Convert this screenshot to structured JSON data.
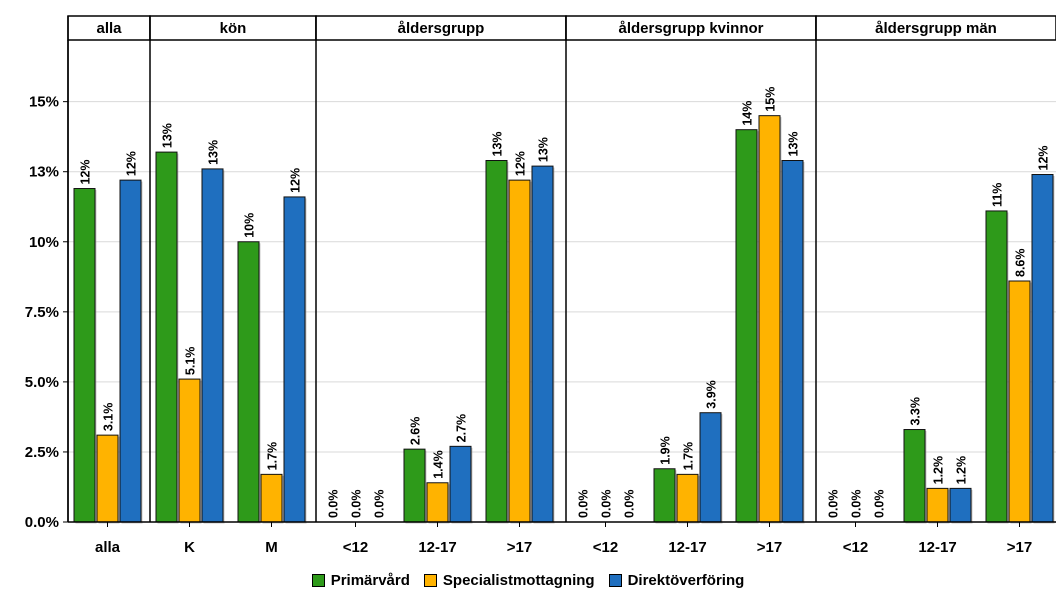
{
  "chart_data": {
    "type": "bar",
    "yticks": [
      "0.0%",
      "2.5%",
      "5.0%",
      "7.5%",
      "10%",
      "13%",
      "15%"
    ],
    "ytick_values": [
      0,
      2.5,
      5.0,
      7.5,
      10,
      12.5,
      15
    ],
    "ylim": [
      0,
      17.2
    ],
    "grid": true,
    "legend_position": "bottom",
    "series": [
      {
        "name": "Primärvård",
        "color": "#2e9a1a"
      },
      {
        "name": "Specialistmottagning",
        "color": "#ffb300"
      },
      {
        "name": "Direktöverföring",
        "color": "#1f6fbf"
      }
    ],
    "panels": [
      {
        "title": "alla",
        "groups": [
          {
            "label": "alla",
            "values": [
              11.9,
              3.1,
              12.2
            ],
            "labels": [
              "12%",
              "3.1%",
              "12%"
            ]
          }
        ]
      },
      {
        "title": "kön",
        "groups": [
          {
            "label": "K",
            "values": [
              13.2,
              5.1,
              12.6
            ],
            "labels": [
              "13%",
              "5.1%",
              "13%"
            ]
          },
          {
            "label": "M",
            "values": [
              10.0,
              1.7,
              11.6
            ],
            "labels": [
              "10%",
              "1.7%",
              "12%"
            ]
          }
        ]
      },
      {
        "title": "åldersgrupp",
        "groups": [
          {
            "label": "<12",
            "values": [
              0,
              0,
              0
            ],
            "labels": [
              "0.0%",
              "0.0%",
              "0.0%"
            ]
          },
          {
            "label": "12-17",
            "values": [
              2.6,
              1.4,
              2.7
            ],
            "labels": [
              "2.6%",
              "1.4%",
              "2.7%"
            ]
          },
          {
            "label": ">17",
            "values": [
              12.9,
              12.2,
              12.7
            ],
            "labels": [
              "13%",
              "12%",
              "13%"
            ]
          }
        ]
      },
      {
        "title": "åldersgrupp kvinnor",
        "groups": [
          {
            "label": "<12",
            "values": [
              0,
              0,
              0
            ],
            "labels": [
              "0.0%",
              "0.0%",
              "0.0%"
            ]
          },
          {
            "label": "12-17",
            "values": [
              1.9,
              1.7,
              3.9
            ],
            "labels": [
              "1.9%",
              "1.7%",
              "3.9%"
            ]
          },
          {
            "label": ">17",
            "values": [
              14.0,
              14.5,
              12.9
            ],
            "labels": [
              "14%",
              "15%",
              "13%"
            ]
          }
        ]
      },
      {
        "title": "åldersgrupp män",
        "groups": [
          {
            "label": "<12",
            "values": [
              0,
              0,
              0
            ],
            "labels": [
              "0.0%",
              "0.0%",
              "0.0%"
            ]
          },
          {
            "label": "12-17",
            "values": [
              3.3,
              1.2,
              1.2
            ],
            "labels": [
              "3.3%",
              "1.2%",
              "1.2%"
            ]
          },
          {
            "label": ">17",
            "values": [
              11.1,
              8.6,
              12.4
            ],
            "labels": [
              "11%",
              "8.6%",
              "12%"
            ]
          }
        ]
      }
    ]
  }
}
